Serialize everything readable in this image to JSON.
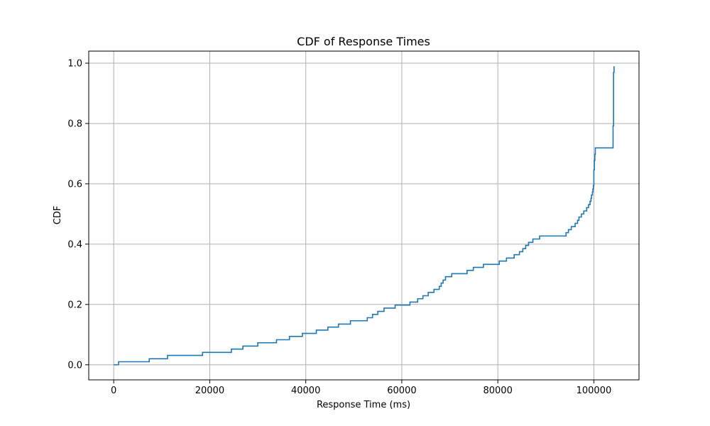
{
  "chart_data": {
    "type": "line",
    "step": true,
    "title": "CDF of Response Times",
    "xlabel": "Response Time (ms)",
    "ylabel": "CDF",
    "xlim": [
      -5200,
      109400
    ],
    "ylim": [
      -0.05,
      1.04
    ],
    "xticks": [
      0,
      20000,
      40000,
      60000,
      80000,
      100000
    ],
    "xtick_labels": [
      "0",
      "20000",
      "40000",
      "60000",
      "80000",
      "100000"
    ],
    "yticks": [
      0.0,
      0.2,
      0.4,
      0.6,
      0.8,
      1.0
    ],
    "ytick_labels": [
      "0.0",
      "0.2",
      "0.4",
      "0.6",
      "0.8",
      "1.0"
    ],
    "grid": true,
    "series": [
      {
        "color": "#1f77b4",
        "x": [
          0,
          1000,
          7400,
          11200,
          18500,
          24500,
          26900,
          30000,
          33900,
          36600,
          39300,
          42200,
          44600,
          46800,
          49300,
          52800,
          53900,
          55000,
          56300,
          58600,
          61700,
          63300,
          64400,
          65500,
          66700,
          67800,
          68200,
          68600,
          69100,
          70400,
          73600,
          74900,
          77000,
          80300,
          81800,
          83400,
          84500,
          85200,
          85800,
          86400,
          87300,
          88700,
          94200,
          94700,
          95300,
          96100,
          96600,
          96900,
          97400,
          97900,
          98500,
          98900,
          99200,
          99400,
          99500,
          99700,
          99800,
          99900,
          100000,
          100100,
          100200,
          100300,
          104000,
          104100,
          104200
        ],
        "y": [
          0.0,
          0.01,
          0.02,
          0.031,
          0.041,
          0.052,
          0.062,
          0.073,
          0.083,
          0.094,
          0.104,
          0.115,
          0.125,
          0.135,
          0.146,
          0.156,
          0.167,
          0.177,
          0.188,
          0.198,
          0.208,
          0.219,
          0.229,
          0.24,
          0.25,
          0.26,
          0.271,
          0.281,
          0.292,
          0.302,
          0.313,
          0.323,
          0.333,
          0.344,
          0.354,
          0.365,
          0.375,
          0.385,
          0.396,
          0.406,
          0.417,
          0.427,
          0.438,
          0.448,
          0.458,
          0.469,
          0.479,
          0.49,
          0.5,
          0.51,
          0.521,
          0.531,
          0.542,
          0.552,
          0.563,
          0.573,
          0.583,
          0.594,
          0.646,
          0.677,
          0.698,
          0.719,
          0.792,
          0.969,
          0.99
        ]
      }
    ]
  }
}
